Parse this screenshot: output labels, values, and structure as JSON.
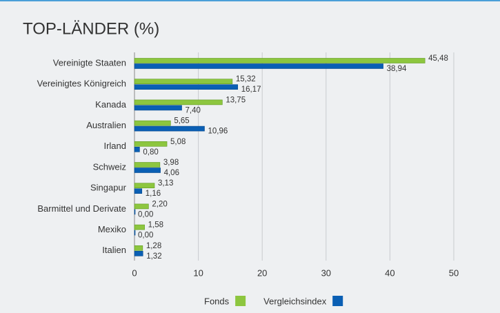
{
  "chart_data": {
    "type": "hbar",
    "title": "TOP-LÄNDER (%)",
    "categories": [
      "Vereinigte Staaten",
      "Vereinigtes Königreich",
      "Kanada",
      "Australien",
      "Irland",
      "Schweiz",
      "Singapur",
      "Barmittel und Derivate",
      "Mexiko",
      "Italien"
    ],
    "series": [
      {
        "name": "Fonds",
        "color": "#8dc63f",
        "values": [
          45.48,
          15.32,
          13.75,
          5.65,
          5.08,
          3.98,
          3.13,
          2.2,
          1.58,
          1.28
        ],
        "value_labels": [
          "45,48",
          "15,32",
          "13,75",
          "5,65",
          "5,08",
          "3,98",
          "3,13",
          "2,20",
          "1,58",
          "1,28"
        ]
      },
      {
        "name": "Vergleichsindex",
        "color": "#0a5fb4",
        "values": [
          38.94,
          16.17,
          7.4,
          10.96,
          0.8,
          4.06,
          1.16,
          0.0,
          0.0,
          1.32
        ],
        "value_labels": [
          "38,94",
          "16,17",
          "7,40",
          "10,96",
          "0,80",
          "4,06",
          "1,16",
          "0,00",
          "0,00",
          "1,32"
        ]
      }
    ],
    "xlim": [
      0,
      50
    ],
    "xticks": [
      0,
      10,
      20,
      30,
      40,
      50
    ],
    "grid": true,
    "legend": "bottom"
  }
}
